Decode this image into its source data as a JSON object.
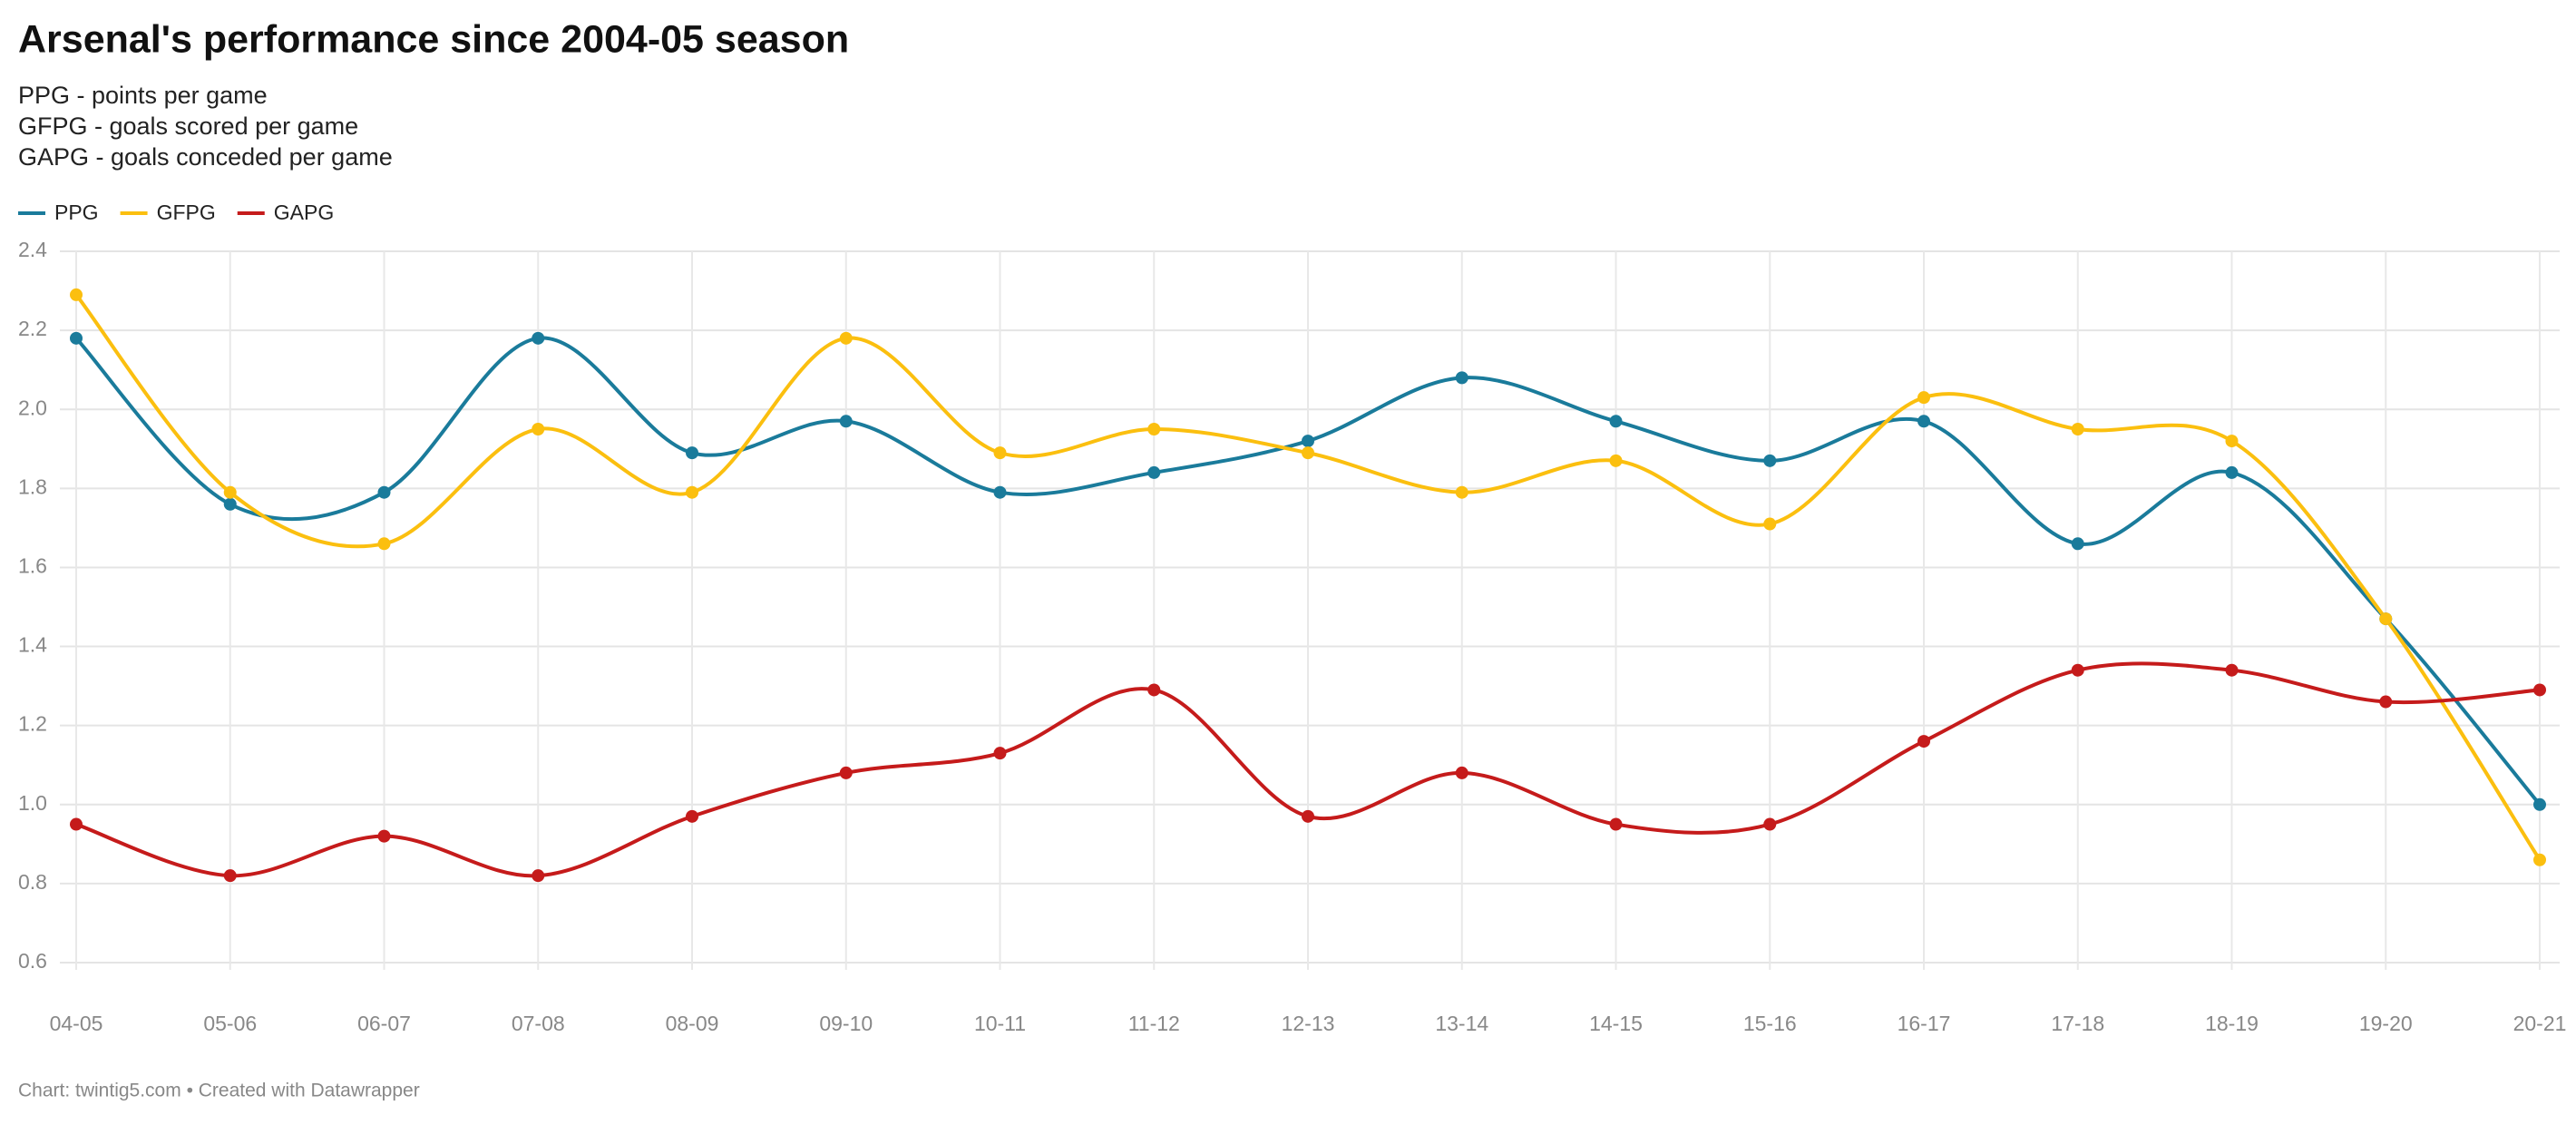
{
  "chart_data": {
    "type": "line",
    "title": "Arsenal's performance since 2004-05 season",
    "subtitle": [
      "PPG - points per game",
      "GFPG - goals scored per game",
      "GAPG - goals conceded per game"
    ],
    "categories": [
      "04-05",
      "05-06",
      "06-07",
      "07-08",
      "08-09",
      "09-10",
      "10-11",
      "11-12",
      "12-13",
      "13-14",
      "14-15",
      "15-16",
      "16-17",
      "17-18",
      "18-19",
      "19-20",
      "20-21"
    ],
    "series": [
      {
        "name": "PPG",
        "color": "#1a7b9b",
        "values": [
          2.18,
          1.76,
          1.79,
          2.18,
          1.89,
          1.97,
          1.79,
          1.84,
          1.92,
          2.08,
          1.97,
          1.87,
          1.97,
          1.66,
          1.84,
          1.47,
          1.0
        ]
      },
      {
        "name": "GFPG",
        "color": "#fbbf0f",
        "values": [
          2.29,
          1.79,
          1.66,
          1.95,
          1.79,
          2.18,
          1.89,
          1.95,
          1.89,
          1.79,
          1.87,
          1.71,
          2.03,
          1.95,
          1.92,
          1.47,
          0.86
        ]
      },
      {
        "name": "GAPG",
        "color": "#c51b1b",
        "values": [
          0.95,
          0.82,
          0.92,
          0.82,
          0.97,
          1.08,
          1.13,
          1.29,
          0.97,
          1.08,
          0.95,
          0.95,
          1.16,
          1.34,
          1.34,
          1.26,
          1.29
        ]
      }
    ],
    "ylim": [
      0.6,
      2.4
    ],
    "yticks": [
      0.6,
      0.8,
      {
        "value": 1,
        "label": "1.0"
      },
      1.2,
      1.4,
      1.6,
      1.8,
      {
        "value": 2,
        "label": "2.0"
      },
      2.2,
      2.4
    ],
    "grid": true,
    "legend": "top-left",
    "footer": "Chart: twintig5.com • Created with Datawrapper"
  }
}
